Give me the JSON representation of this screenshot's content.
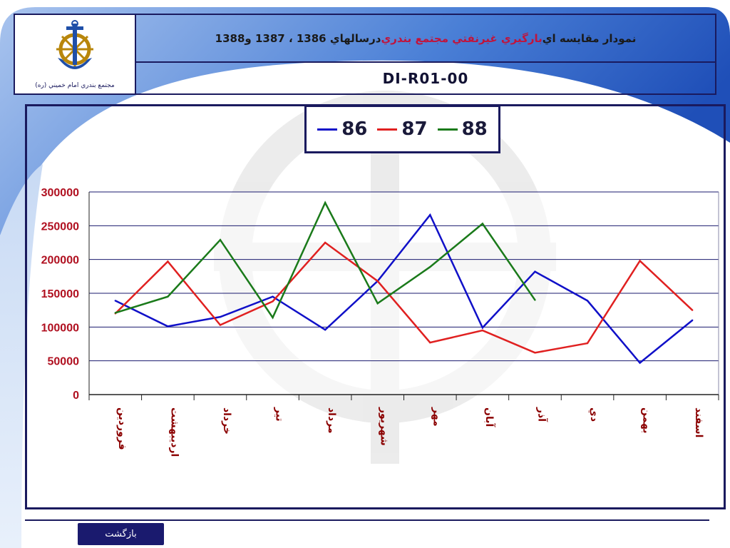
{
  "header": {
    "title_parts": [
      {
        "text": "نمودار مقايسه اي ",
        "tone": "dark"
      },
      {
        "text": "بارگيري غيرنفتي مجتمع بندري",
        "tone": "red"
      },
      {
        "text": " درسالهاي 1386 ، 1387 و1388",
        "tone": "dark"
      }
    ],
    "code": "DI-R01-00",
    "logo_caption": "مجتمع بندري امام خميني (ره)"
  },
  "footer": {
    "back_label": "بازگشت"
  },
  "colors": {
    "frame": "#1a1a5e",
    "grid": "#1a1a6e",
    "tick_label": "#8b0000",
    "y_label": "#b01020"
  },
  "chart_data": {
    "type": "line",
    "categories": [
      "فروردين",
      "ارديبهشت",
      "خرداد",
      "تير",
      "مرداد",
      "شهريور",
      "مهر",
      "آبان",
      "آذر",
      "دي",
      "بهمن",
      "اسفند"
    ],
    "ylim": [
      0,
      300000
    ],
    "yticks": [
      0,
      50000,
      100000,
      150000,
      200000,
      250000,
      300000
    ],
    "grid": true,
    "legend_position": "top",
    "series": [
      {
        "name": "86",
        "color": "#1010c8",
        "values": [
          139000,
          101000,
          115000,
          145000,
          96000,
          168000,
          266000,
          99000,
          182000,
          139000,
          47000,
          110000
        ]
      },
      {
        "name": "87",
        "color": "#e02020",
        "values": [
          120000,
          197000,
          103000,
          138000,
          225000,
          168000,
          77000,
          95000,
          62000,
          76000,
          198000,
          125000
        ]
      },
      {
        "name": "88",
        "color": "#1a7a1a",
        "values": [
          121000,
          145000,
          229000,
          114000,
          284000,
          135000,
          189000,
          253000,
          140000,
          null,
          null,
          null
        ]
      }
    ]
  }
}
